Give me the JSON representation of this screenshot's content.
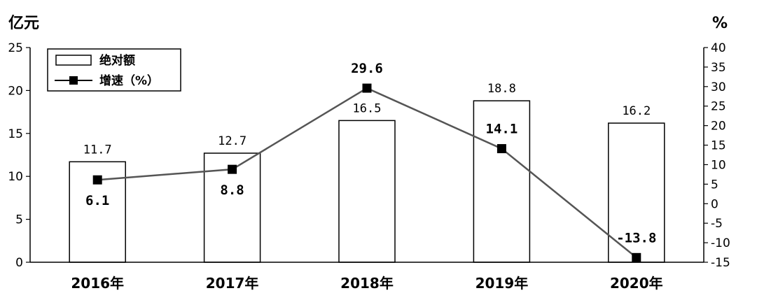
{
  "chart_data": {
    "type": "bar",
    "y_left_label": "亿元",
    "y_right_label": "%",
    "categories": [
      "2016年",
      "2017年",
      "2018年",
      "2019年",
      "2020年"
    ],
    "ylim_left": [
      0,
      25
    ],
    "yticks_left": [
      0,
      5,
      10,
      15,
      20,
      25
    ],
    "ylim_right": [
      -15,
      40
    ],
    "yticks_right": [
      -15,
      -10,
      -5,
      0,
      5,
      10,
      15,
      20,
      25,
      30,
      35,
      40
    ],
    "series": [
      {
        "name": "绝对额",
        "kind": "bar",
        "axis": "left",
        "values": [
          11.7,
          12.7,
          16.5,
          18.8,
          16.2
        ],
        "labels": [
          "11.7",
          "12.7",
          "16.5",
          "18.8",
          "16.2"
        ]
      },
      {
        "name": "增速（%）",
        "kind": "line",
        "axis": "right",
        "values": [
          6.1,
          8.8,
          29.6,
          14.1,
          -13.8
        ],
        "labels": [
          "6.1",
          "8.8",
          "29.6",
          "14.1",
          "-13.8"
        ]
      }
    ],
    "legend_position": "top-left",
    "grid": false
  }
}
